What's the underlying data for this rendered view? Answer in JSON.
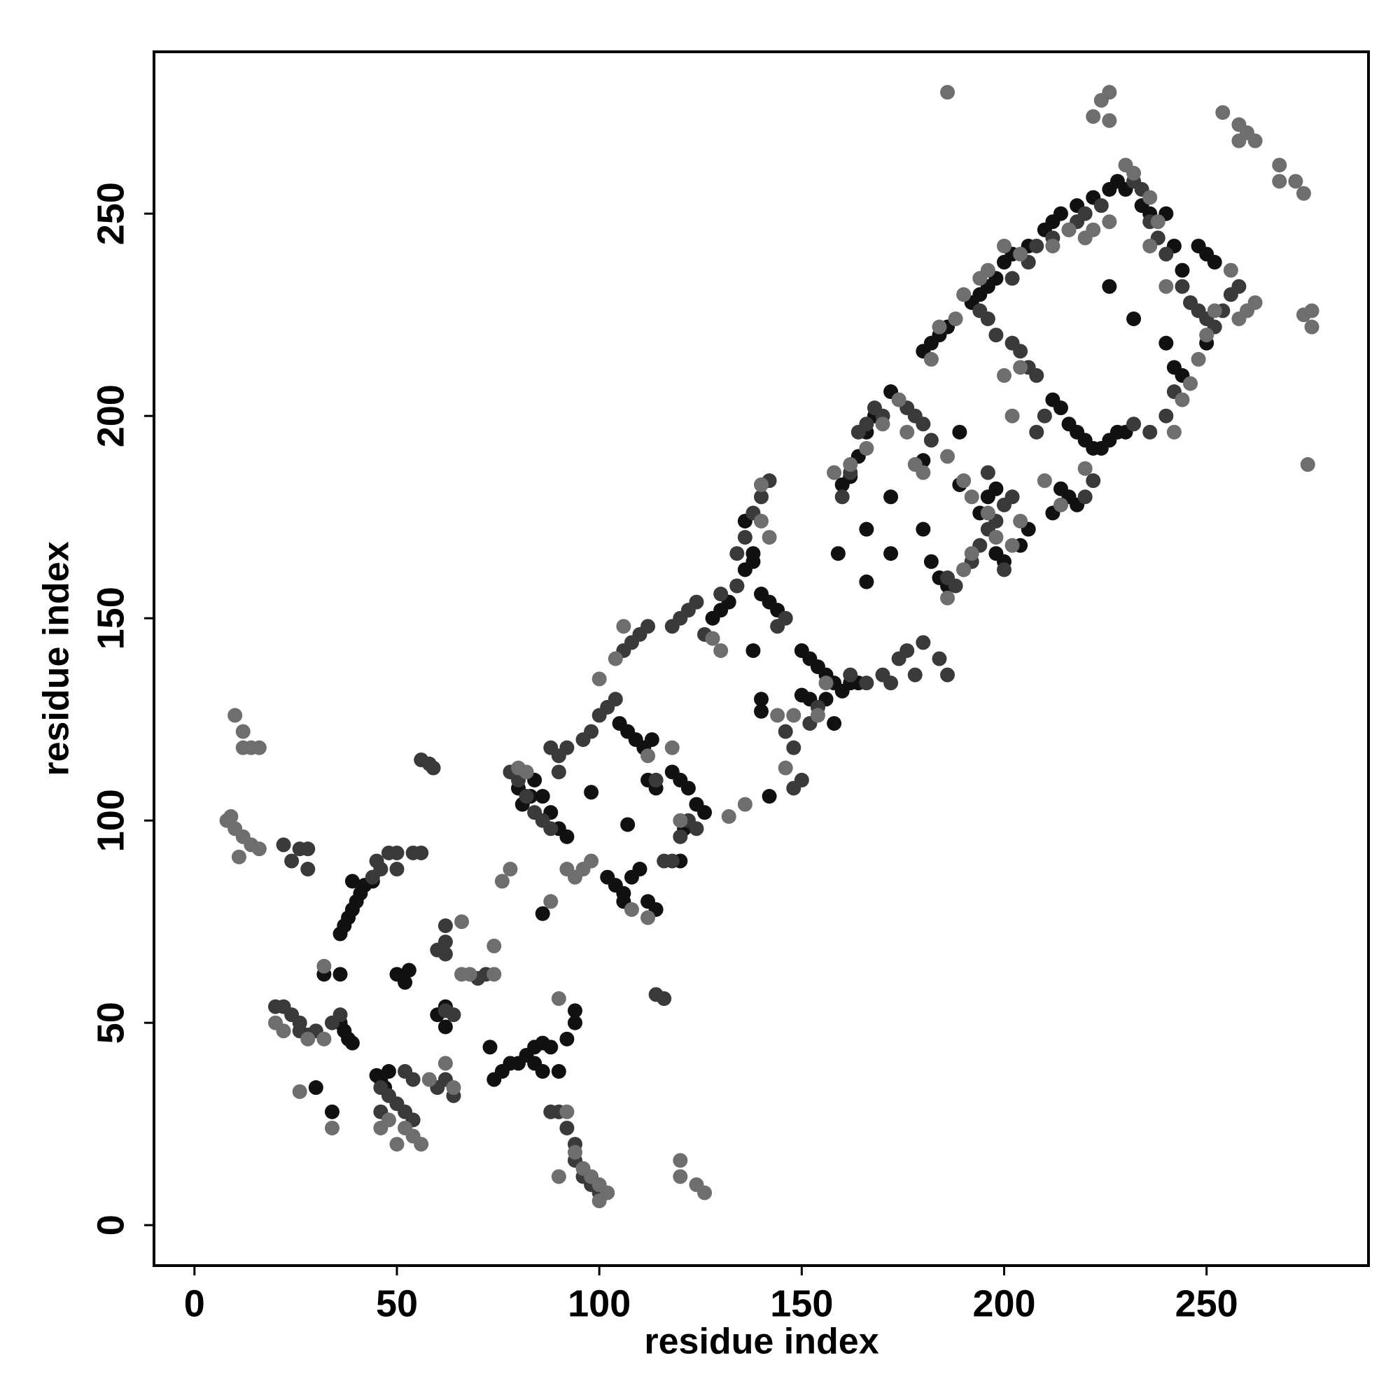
{
  "chart_data": {
    "type": "scatter",
    "xlabel": "residue index",
    "ylabel": "residue index",
    "xlim": [
      -10,
      290
    ],
    "ylim": [
      -10,
      290
    ],
    "xticks": [
      0,
      50,
      100,
      150,
      200,
      250
    ],
    "yticks": [
      0,
      50,
      100,
      150,
      200,
      250
    ],
    "series": [
      {
        "color": "#111111",
        "x": [
          36,
          37,
          38,
          39,
          40,
          41,
          42,
          44,
          39,
          37,
          38,
          39,
          36,
          45,
          46,
          47,
          48,
          53,
          52,
          50,
          74,
          76,
          78,
          80,
          82,
          84,
          86,
          84,
          86,
          73,
          84,
          83,
          81,
          80,
          86,
          88,
          90,
          92,
          86,
          98,
          107,
          102,
          104,
          106,
          108,
          110,
          112,
          114,
          106,
          105,
          107,
          109,
          111,
          113,
          112,
          114,
          118,
          120,
          122,
          124,
          126,
          121,
          120,
          128,
          130,
          132,
          134,
          136,
          138,
          140,
          142,
          144,
          136,
          138,
          138,
          140,
          140,
          142,
          150,
          152,
          154,
          156,
          158,
          160,
          162,
          164,
          150,
          152,
          156,
          158,
          166,
          172,
          166,
          159,
          172,
          180,
          180,
          189,
          189,
          160,
          162,
          164,
          166,
          168,
          172,
          180,
          182,
          184,
          186,
          192,
          194,
          196,
          198,
          200,
          202,
          206,
          210,
          212,
          214,
          218,
          222,
          226,
          228,
          230,
          234,
          236,
          240,
          242,
          244,
          248,
          250,
          252,
          240,
          242,
          244,
          226,
          232,
          250,
          212,
          214,
          216,
          218,
          220,
          222,
          224,
          226,
          228,
          230,
          214,
          216,
          218,
          212,
          206,
          204,
          200,
          198,
          194,
          196,
          198,
          182,
          184,
          186,
          34,
          30,
          62,
          60,
          62,
          94,
          94,
          92,
          88,
          90,
          36,
          32
        ],
        "values": [
          72,
          74,
          76,
          78,
          80,
          82,
          84,
          85,
          85,
          48,
          46,
          45,
          50,
          37,
          36,
          34,
          38,
          63,
          60,
          62,
          36,
          38,
          40,
          40,
          42,
          44,
          45,
          40,
          38,
          44,
          110,
          106,
          104,
          108,
          106,
          102,
          98,
          96,
          77,
          107,
          99,
          86,
          84,
          82,
          86,
          88,
          80,
          78,
          80,
          124,
          122,
          120,
          118,
          120,
          110,
          108,
          112,
          110,
          108,
          104,
          102,
          98,
          90,
          150,
          152,
          154,
          158,
          162,
          164,
          156,
          154,
          152,
          174,
          166,
          142,
          130,
          127,
          106,
          142,
          140,
          138,
          136,
          134,
          132,
          134,
          134,
          131,
          130,
          130,
          124,
          172,
          166,
          159,
          166,
          180,
          172,
          189,
          196,
          183,
          183,
          185,
          190,
          196,
          200,
          206,
          216,
          218,
          220,
          222,
          228,
          230,
          232,
          234,
          238,
          240,
          242,
          246,
          248,
          250,
          252,
          254,
          256,
          258,
          256,
          252,
          250,
          250,
          242,
          236,
          242,
          240,
          238,
          218,
          212,
          210,
          232,
          224,
          218,
          204,
          202,
          198,
          196,
          194,
          192,
          192,
          194,
          196,
          196,
          182,
          180,
          178,
          176,
          172,
          168,
          164,
          166,
          176,
          180,
          182,
          164,
          160,
          158,
          28,
          34,
          49,
          52,
          54,
          50,
          53,
          46,
          44,
          38,
          62,
          62
        ]
      },
      {
        "color": "#3a3a3a",
        "x": [
          28,
          26,
          22,
          24,
          28,
          45,
          48,
          50,
          54,
          56,
          44,
          46,
          50,
          36,
          34,
          30,
          26,
          24,
          22,
          20,
          26,
          28,
          46,
          48,
          50,
          52,
          54,
          46,
          54,
          52,
          56,
          58,
          59,
          62,
          62,
          60,
          62,
          64,
          60,
          62,
          64,
          72,
          70,
          88,
          90,
          92,
          94,
          94,
          96,
          98,
          100,
          78,
          80,
          82,
          84,
          86,
          88,
          88,
          90,
          92,
          96,
          98,
          100,
          102,
          104,
          106,
          108,
          110,
          112,
          114,
          116,
          118,
          120,
          122,
          124,
          116,
          114,
          118,
          120,
          122,
          124,
          126,
          130,
          134,
          136,
          138,
          140,
          142,
          146,
          144,
          134,
          146,
          148,
          150,
          148,
          152,
          154,
          162,
          166,
          170,
          172,
          174,
          176,
          178,
          160,
          162,
          164,
          166,
          168,
          170,
          176,
          178,
          180,
          182,
          186,
          188,
          190,
          192,
          194,
          196,
          198,
          200,
          202,
          200,
          196,
          206,
          208,
          204,
          202,
          198,
          196,
          194,
          202,
          206,
          208,
          212,
          216,
          218,
          220,
          224,
          232,
          234,
          236,
          238,
          240,
          244,
          246,
          248,
          250,
          252,
          254,
          256,
          258,
          242,
          240,
          236,
          232,
          210,
          208,
          220,
          222,
          186,
          184,
          180,
          90,
          62
        ],
        "values": [
          93,
          93,
          94,
          90,
          88,
          90,
          92,
          92,
          92,
          92,
          86,
          88,
          88,
          52,
          50,
          48,
          50,
          52,
          54,
          54,
          48,
          47,
          34,
          32,
          30,
          28,
          26,
          28,
          36,
          38,
          115,
          114,
          113,
          74,
          70,
          68,
          53,
          52,
          34,
          36,
          32,
          62,
          61,
          28,
          28,
          24,
          20,
          16,
          12,
          10,
          8,
          112,
          110,
          106,
          102,
          100,
          98,
          118,
          116,
          118,
          120,
          122,
          126,
          128,
          130,
          142,
          144,
          146,
          148,
          110,
          90,
          90,
          96,
          100,
          98,
          56,
          57,
          148,
          150,
          152,
          154,
          146,
          156,
          166,
          170,
          176,
          180,
          184,
          150,
          148,
          158,
          122,
          118,
          110,
          108,
          124,
          128,
          136,
          134,
          136,
          134,
          140,
          142,
          136,
          180,
          186,
          196,
          198,
          202,
          200,
          202,
          200,
          198,
          194,
          160,
          158,
          162,
          164,
          168,
          172,
          174,
          178,
          180,
          162,
          186,
          212,
          210,
          216,
          218,
          220,
          224,
          226,
          234,
          238,
          242,
          244,
          246,
          248,
          250,
          252,
          258,
          256,
          248,
          244,
          240,
          232,
          228,
          226,
          224,
          222,
          226,
          230,
          232,
          206,
          200,
          196,
          198,
          200,
          196,
          180,
          184,
          136,
          140,
          144,
          112,
          67
        ]
      },
      {
        "color": "#6e6e6e",
        "x": [
          8,
          9,
          10,
          12,
          14,
          16,
          10,
          12,
          12,
          14,
          16,
          11,
          20,
          22,
          28,
          32,
          26,
          32,
          34,
          46,
          48,
          50,
          52,
          54,
          56,
          58,
          62,
          64,
          66,
          66,
          68,
          74,
          74,
          76,
          78,
          80,
          82,
          88,
          90,
          92,
          94,
          96,
          98,
          100,
          100,
          102,
          90,
          108,
          112,
          120,
          120,
          124,
          126,
          96,
          98,
          94,
          92,
          100,
          104,
          106,
          112,
          118,
          120,
          128,
          130,
          132,
          136,
          140,
          142,
          140,
          144,
          146,
          148,
          154,
          156,
          158,
          162,
          166,
          170,
          174,
          176,
          178,
          180,
          186,
          190,
          192,
          196,
          198,
          202,
          204,
          186,
          190,
          192,
          202,
          200,
          204,
          210,
          214,
          220,
          182,
          184,
          188,
          190,
          194,
          196,
          200,
          204,
          212,
          216,
          220,
          222,
          226,
          230,
          232,
          236,
          238,
          240,
          242,
          244,
          246,
          248,
          250,
          252,
          256,
          258,
          260,
          262,
          236,
          186,
          226,
          224,
          222,
          226,
          254,
          258,
          260,
          262,
          258,
          268,
          272,
          268,
          274,
          276,
          274,
          276,
          275
        ],
        "values": [
          100,
          101,
          98,
          96,
          94,
          93,
          126,
          122,
          118,
          118,
          118,
          91,
          50,
          48,
          46,
          46,
          33,
          64,
          24,
          24,
          26,
          20,
          24,
          22,
          20,
          36,
          40,
          34,
          75,
          62,
          62,
          62,
          69,
          85,
          88,
          113,
          112,
          80,
          56,
          28,
          18,
          14,
          12,
          10,
          6,
          8,
          12,
          78,
          76,
          12,
          16,
          10,
          8,
          88,
          90,
          86,
          88,
          135,
          140,
          148,
          116,
          118,
          100,
          145,
          142,
          101,
          104,
          174,
          170,
          183,
          126,
          113,
          126,
          126,
          134,
          186,
          188,
          192,
          198,
          204,
          196,
          188,
          186,
          190,
          184,
          180,
          176,
          170,
          168,
          174,
          155,
          162,
          166,
          200,
          210,
          212,
          184,
          178,
          187,
          214,
          222,
          224,
          230,
          234,
          236,
          242,
          240,
          242,
          246,
          244,
          246,
          248,
          262,
          260,
          254,
          248,
          232,
          196,
          204,
          208,
          214,
          220,
          226,
          236,
          224,
          226,
          228,
          242,
          280,
          280,
          278,
          274,
          273,
          275,
          272,
          270,
          268,
          268,
          262,
          258,
          258,
          255,
          226,
          225,
          222,
          188
        ]
      }
    ]
  }
}
